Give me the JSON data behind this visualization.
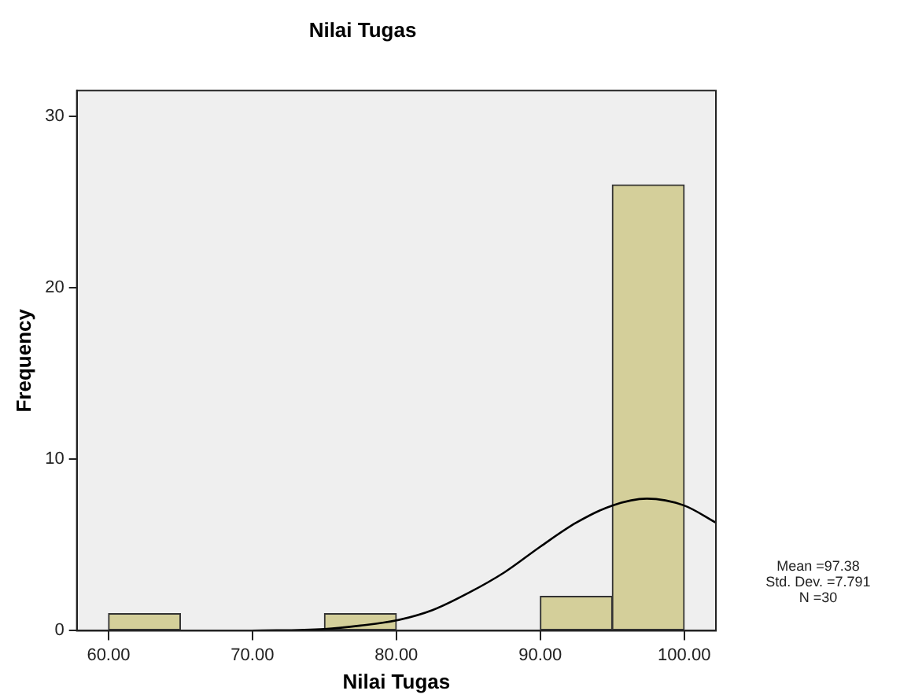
{
  "chart_data": {
    "type": "histogram",
    "title": "Nilai Tugas",
    "xlabel": "Nilai Tugas",
    "ylabel": "Frequency",
    "bins": [
      60,
      65,
      70,
      75,
      80,
      85,
      90,
      95,
      100
    ],
    "values": [
      1,
      0,
      0,
      1,
      0,
      0,
      2,
      26
    ],
    "color": "#d4cf9a",
    "series": [
      {
        "type": "line",
        "color": "#000000",
        "x": [
          70,
          75,
          77.5,
          80,
          82.5,
          85,
          87.5,
          90,
          92.5,
          95,
          97.4,
          100,
          102.2
        ],
        "values": [
          0.0,
          0.1,
          0.3,
          0.6,
          1.2,
          2.2,
          3.4,
          4.9,
          6.3,
          7.3,
          7.7,
          7.3,
          6.3
        ]
      }
    ],
    "xlim": [
      57.8,
      102.2
    ],
    "ylim": [
      0,
      31.5
    ],
    "xticks": [
      {
        "value": 60,
        "label": "60.00"
      },
      {
        "value": 70,
        "label": "70.00"
      },
      {
        "value": 80,
        "label": "80.00"
      },
      {
        "value": 90,
        "label": "90.00"
      },
      {
        "value": 100,
        "label": "100.00"
      }
    ],
    "yticks": [
      0,
      10,
      20,
      30
    ],
    "grid": false,
    "legend": false,
    "annotations": [
      "Mean =97.38",
      "Std. Dev. =7.791",
      "N =30"
    ]
  }
}
